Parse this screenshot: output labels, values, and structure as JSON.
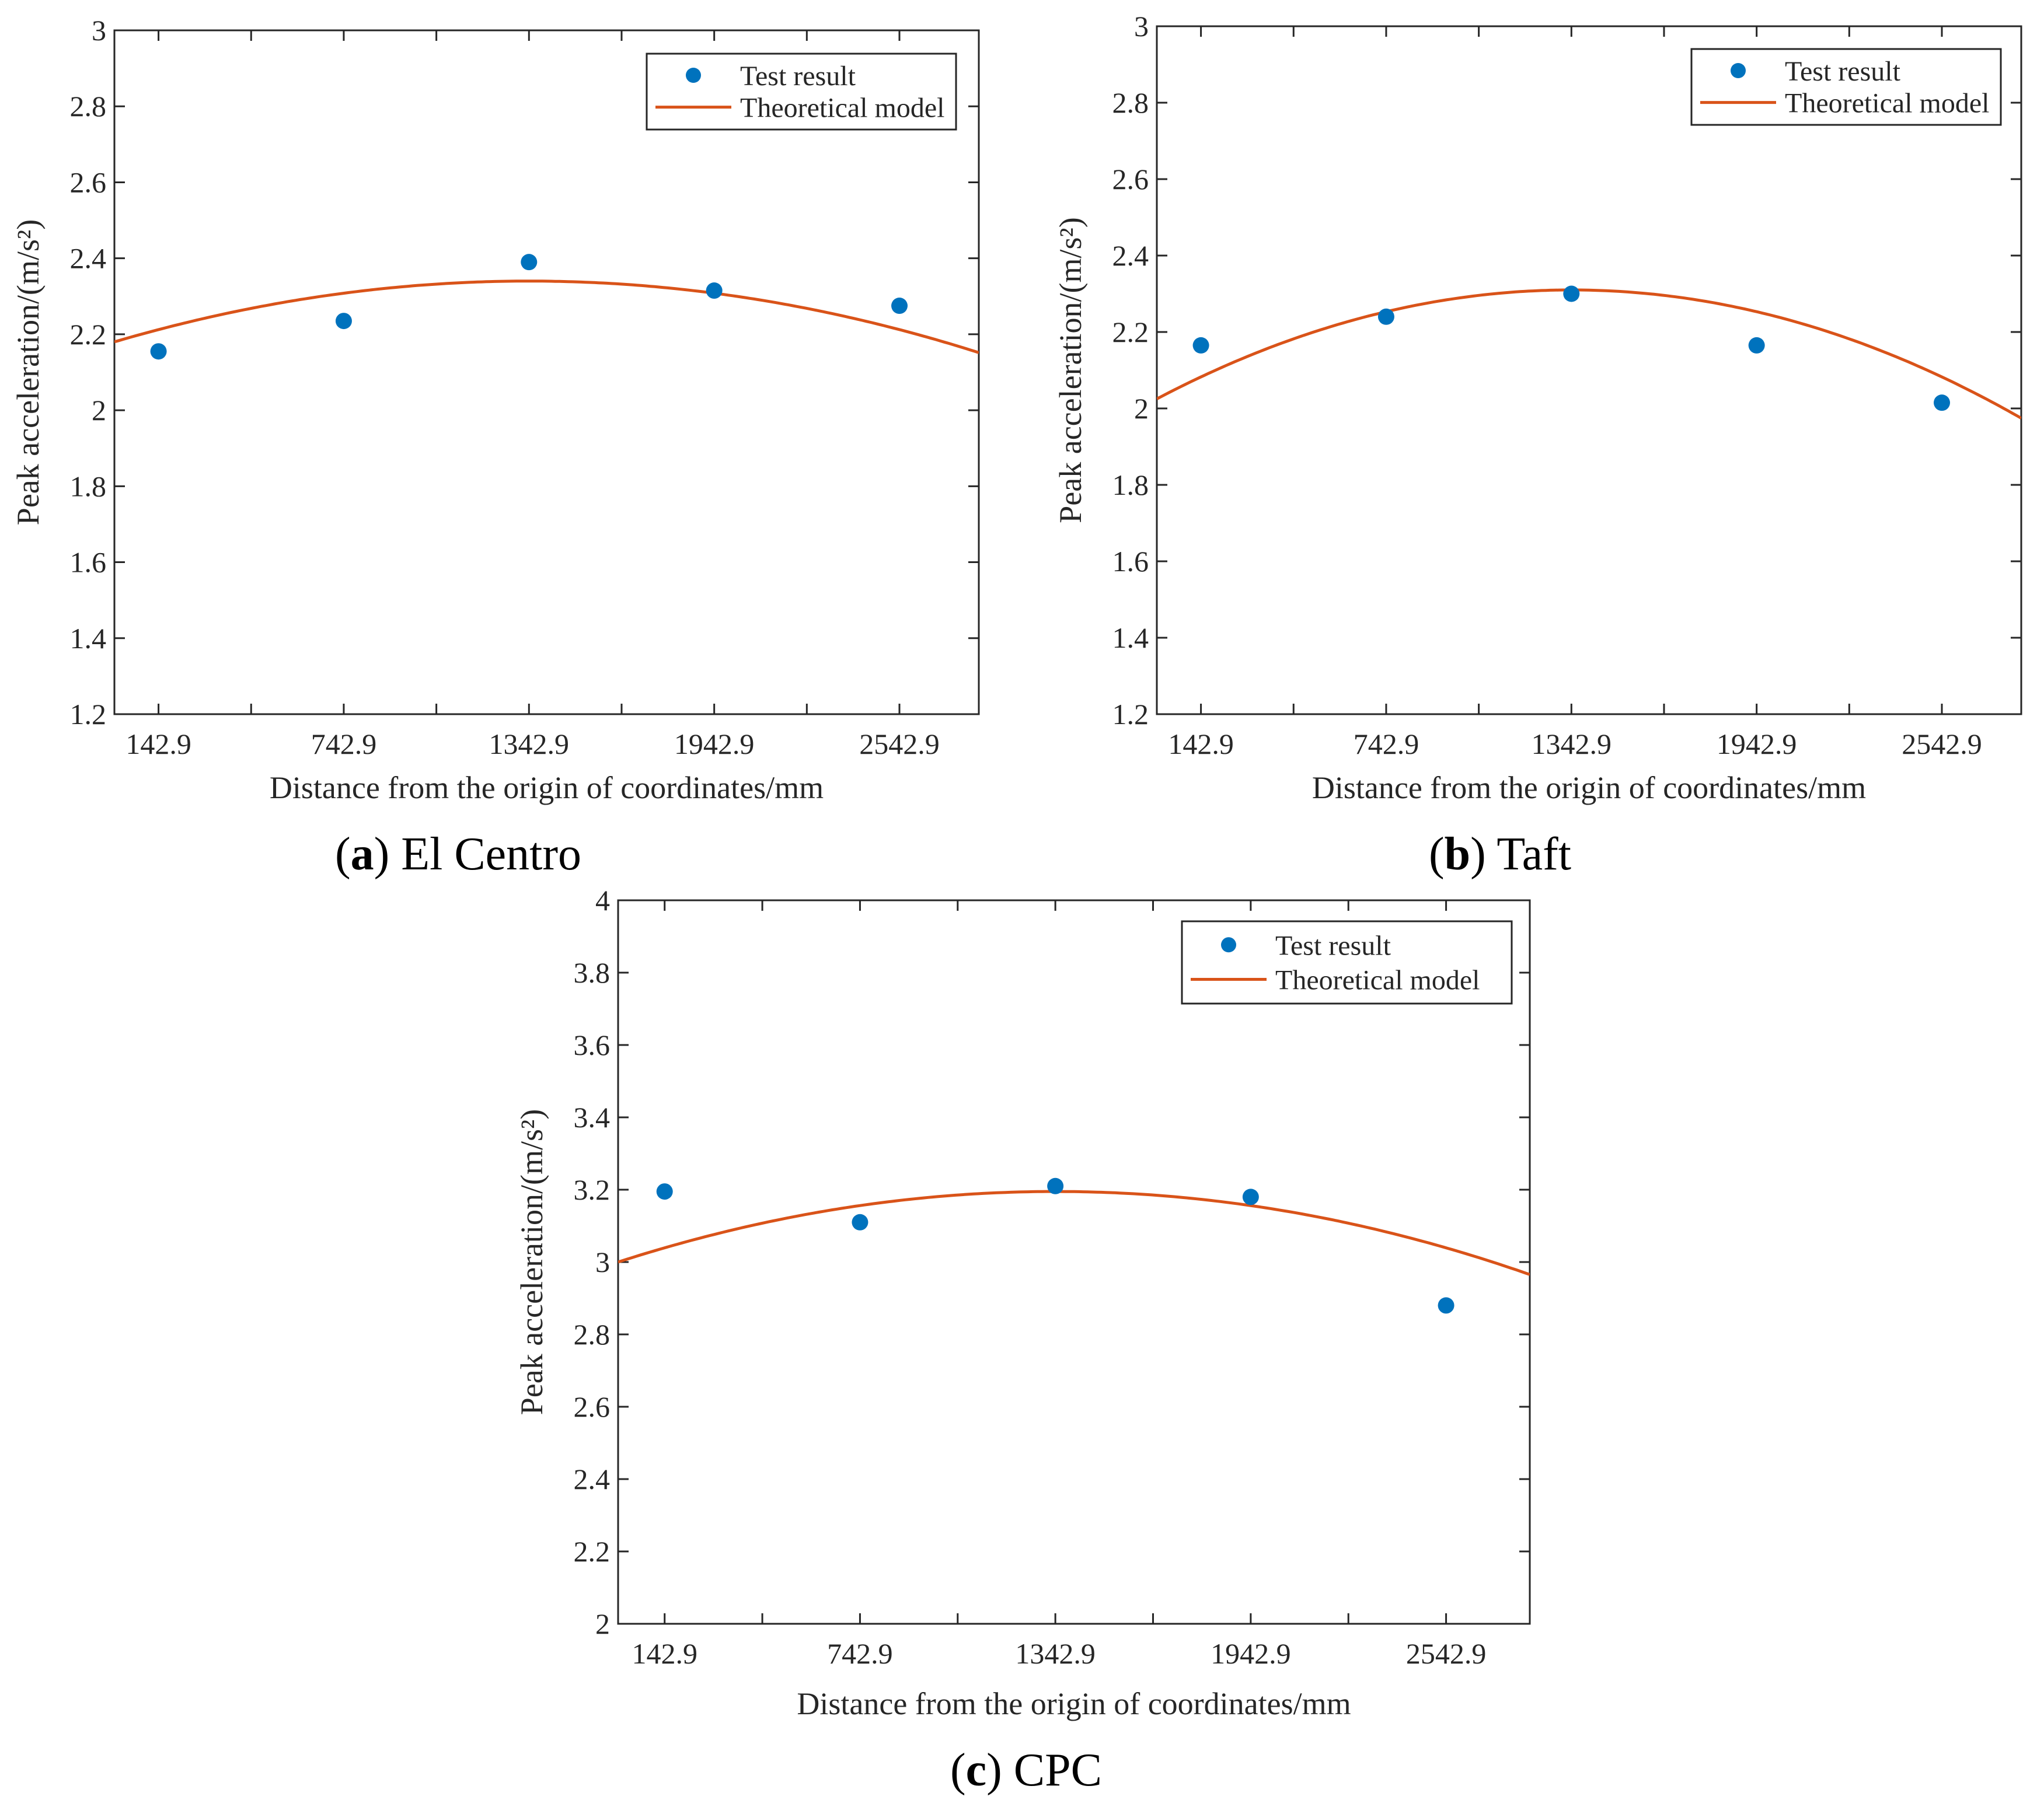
{
  "figure": {
    "colors": {
      "marker": "#0072BD",
      "curve": "#D95319",
      "axis": "#262626",
      "background": "#ffffff"
    }
  },
  "chart_data": [
    {
      "id": "a",
      "type": "scatter",
      "caption": {
        "letter": "a",
        "text": "El Centro"
      },
      "xlabel": "Distance from the origin of coordinates/mm",
      "ylabel": "Peak acceleration/(m/s²)",
      "xlim": [
        0,
        2800
      ],
      "ylim": [
        1.2,
        3
      ],
      "xticks": [
        142.9,
        742.9,
        1342.9,
        1942.9,
        2542.9
      ],
      "xtick_labels": [
        "142.9",
        "742.9",
        "1342.9",
        "1942.9",
        "2542.9"
      ],
      "yticks": [
        1.2,
        1.4,
        1.6,
        1.8,
        2,
        2.2,
        2.4,
        2.6,
        2.8,
        3
      ],
      "ytick_labels": [
        "1.2",
        "1.4",
        "1.6",
        "1.8",
        "2",
        "2.2",
        "2.4",
        "2.6",
        "2.8",
        "3"
      ],
      "legend": {
        "position": "top-right",
        "entries": [
          "Test result",
          "Theoretical model"
        ]
      },
      "series": [
        {
          "name": "Test result",
          "kind": "markers",
          "x": [
            142.9,
            742.9,
            1342.9,
            1942.9,
            2542.9
          ],
          "y": [
            2.155,
            2.235,
            2.39,
            2.315,
            2.275
          ]
        },
        {
          "name": "Theoretical model",
          "kind": "curve",
          "x": [
            0,
            1342.9,
            2685.8
          ],
          "y": [
            2.18,
            2.34,
            2.18
          ]
        }
      ]
    },
    {
      "id": "b",
      "type": "scatter",
      "caption": {
        "letter": "b",
        "text": "Taft"
      },
      "xlabel": "Distance from the origin of coordinates/mm",
      "ylabel": "Peak acceleration/(m/s²)",
      "xlim": [
        0,
        2800
      ],
      "ylim": [
        1.2,
        3
      ],
      "xticks": [
        142.9,
        742.9,
        1342.9,
        1942.9,
        2542.9
      ],
      "xtick_labels": [
        "142.9",
        "742.9",
        "1342.9",
        "1942.9",
        "2542.9"
      ],
      "yticks": [
        1.2,
        1.4,
        1.6,
        1.8,
        2,
        2.2,
        2.4,
        2.6,
        2.8,
        3
      ],
      "ytick_labels": [
        "1.2",
        "1.4",
        "1.6",
        "1.8",
        "2",
        "2.2",
        "2.4",
        "2.6",
        "2.8",
        "3"
      ],
      "legend": {
        "position": "top-right",
        "entries": [
          "Test result",
          "Theoretical model"
        ]
      },
      "series": [
        {
          "name": "Test result",
          "kind": "markers",
          "x": [
            142.9,
            742.9,
            1342.9,
            1942.9,
            2542.9
          ],
          "y": [
            2.165,
            2.24,
            2.3,
            2.165,
            2.015
          ]
        },
        {
          "name": "Theoretical model",
          "kind": "curve",
          "x": [
            0,
            1342.9,
            2685.8
          ],
          "y": [
            2.025,
            2.31,
            2.025
          ]
        }
      ]
    },
    {
      "id": "c",
      "type": "scatter",
      "caption": {
        "letter": "c",
        "text": "CPC"
      },
      "xlabel": "Distance from the origin of coordinates/mm",
      "ylabel": "Peak acceleration/(m/s²)",
      "xlim": [
        0,
        2800
      ],
      "ylim": [
        2,
        4
      ],
      "xticks": [
        142.9,
        742.9,
        1342.9,
        1942.9,
        2542.9
      ],
      "xtick_labels": [
        "142.9",
        "742.9",
        "1342.9",
        "1942.9",
        "2542.9"
      ],
      "yticks": [
        2,
        2.2,
        2.4,
        2.6,
        2.8,
        3,
        3.2,
        3.4,
        3.6,
        3.8,
        4
      ],
      "ytick_labels": [
        "2",
        "2.2",
        "2.4",
        "2.6",
        "2.8",
        "3",
        "3.2",
        "3.4",
        "3.6",
        "3.8",
        "4"
      ],
      "legend": {
        "position": "top-right",
        "entries": [
          "Test result",
          "Theoretical model"
        ]
      },
      "series": [
        {
          "name": "Test result",
          "kind": "markers",
          "x": [
            142.9,
            742.9,
            1342.9,
            1942.9,
            2542.9
          ],
          "y": [
            3.195,
            3.11,
            3.21,
            3.18,
            2.88
          ]
        },
        {
          "name": "Theoretical model",
          "kind": "curve",
          "x": [
            0,
            1342.9,
            2685.8
          ],
          "y": [
            3.0,
            3.195,
            3.0
          ]
        }
      ]
    }
  ]
}
